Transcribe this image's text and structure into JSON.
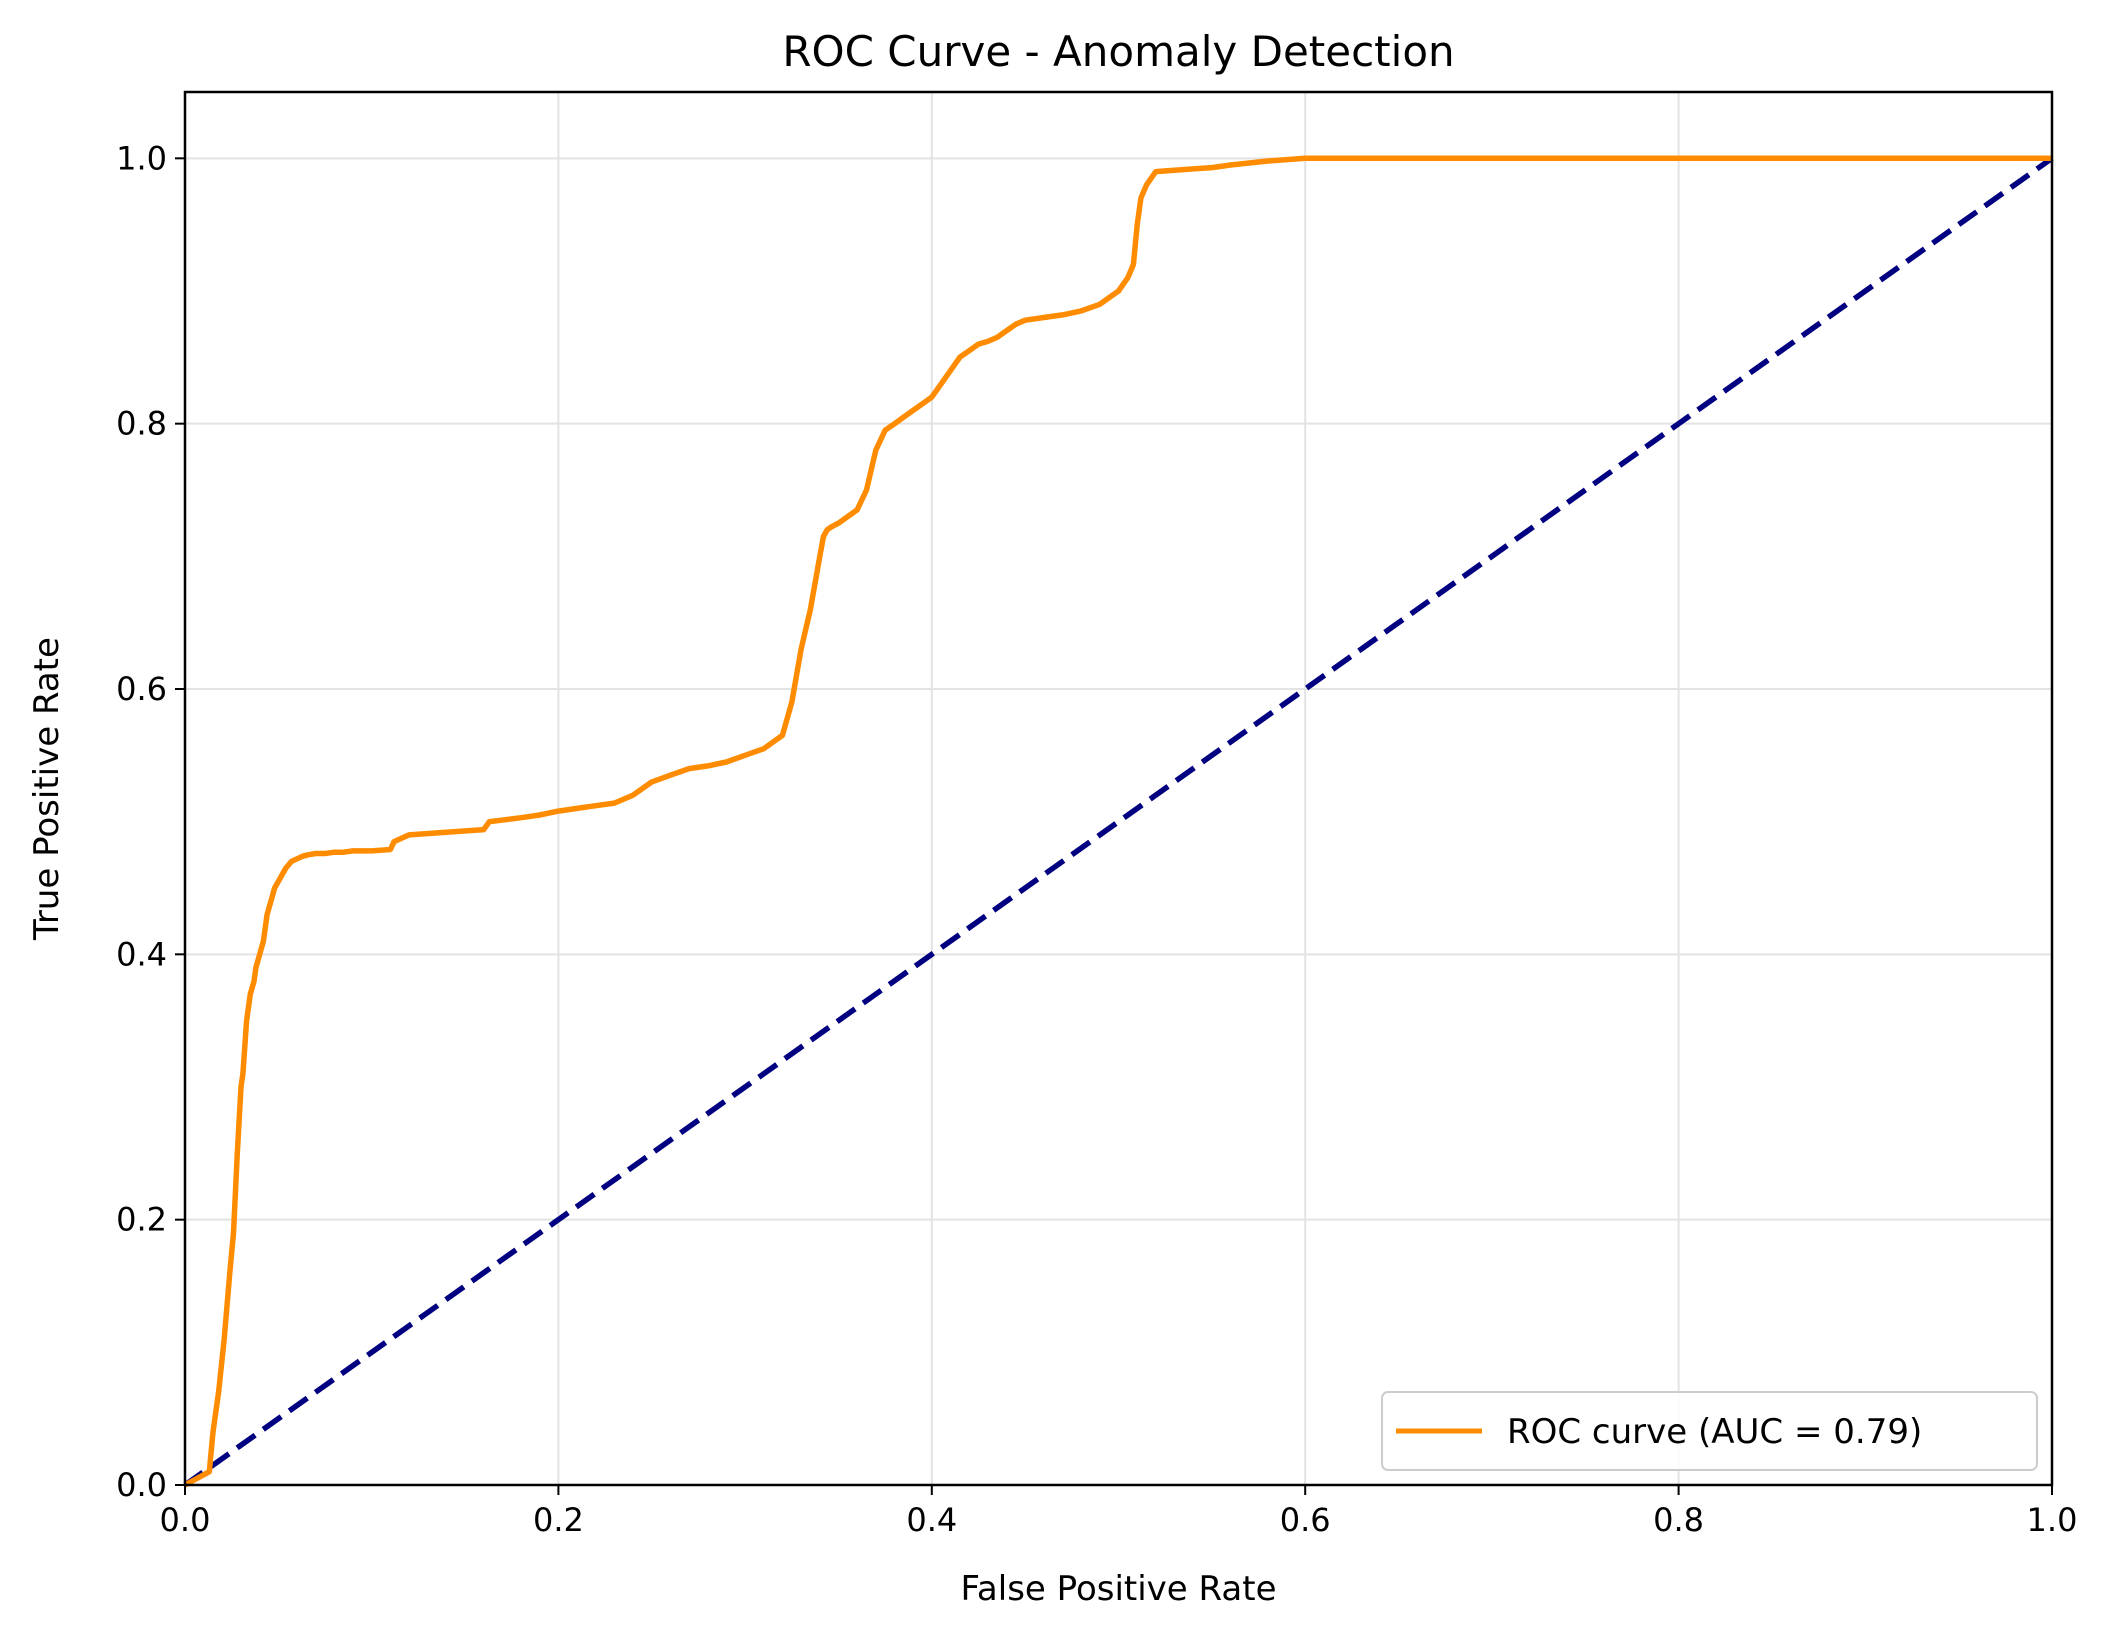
{
  "chart_data": {
    "type": "line",
    "title": "ROC Curve - Anomaly Detection",
    "xlabel": "False Positive Rate",
    "ylabel": "True Positive Rate",
    "xlim": [
      0.0,
      1.0
    ],
    "ylim": [
      0.0,
      1.05
    ],
    "x_ticks": [
      "0.0",
      "0.2",
      "0.4",
      "0.6",
      "0.8",
      "1.0"
    ],
    "y_ticks": [
      "0.0",
      "0.2",
      "0.4",
      "0.6",
      "0.8",
      "1.0"
    ],
    "grid": true,
    "legend_position": "lower-right",
    "series": [
      {
        "name": "ROC curve (AUC = 0.79)",
        "color": "#ff8c00",
        "style": "solid",
        "x": [
          0.0,
          0.013,
          0.015,
          0.018,
          0.021,
          0.024,
          0.026,
          0.028,
          0.03,
          0.031,
          0.033,
          0.035,
          0.037,
          0.038,
          0.04,
          0.042,
          0.044,
          0.046,
          0.048,
          0.05,
          0.052,
          0.054,
          0.057,
          0.06,
          0.063,
          0.066,
          0.07,
          0.075,
          0.08,
          0.085,
          0.09,
          0.1,
          0.11,
          0.112,
          0.12,
          0.14,
          0.16,
          0.163,
          0.18,
          0.19,
          0.2,
          0.21,
          0.22,
          0.23,
          0.24,
          0.25,
          0.26,
          0.27,
          0.28,
          0.29,
          0.3,
          0.31,
          0.32,
          0.325,
          0.33,
          0.335,
          0.34,
          0.342,
          0.344,
          0.346,
          0.35,
          0.355,
          0.36,
          0.365,
          0.37,
          0.375,
          0.38,
          0.385,
          0.39,
          0.395,
          0.4,
          0.405,
          0.41,
          0.415,
          0.42,
          0.425,
          0.43,
          0.435,
          0.44,
          0.445,
          0.45,
          0.46,
          0.47,
          0.48,
          0.49,
          0.5,
          0.505,
          0.508,
          0.51,
          0.512,
          0.515,
          0.52,
          0.53,
          0.54,
          0.55,
          0.56,
          0.58,
          0.6,
          0.7,
          0.8,
          0.9,
          1.0
        ],
        "y": [
          0.0,
          0.01,
          0.04,
          0.07,
          0.11,
          0.16,
          0.19,
          0.25,
          0.3,
          0.31,
          0.35,
          0.37,
          0.38,
          0.39,
          0.4,
          0.41,
          0.43,
          0.44,
          0.45,
          0.455,
          0.46,
          0.465,
          0.47,
          0.472,
          0.474,
          0.475,
          0.476,
          0.476,
          0.477,
          0.477,
          0.478,
          0.478,
          0.479,
          0.485,
          0.49,
          0.492,
          0.494,
          0.5,
          0.503,
          0.505,
          0.508,
          0.51,
          0.512,
          0.514,
          0.52,
          0.53,
          0.535,
          0.54,
          0.542,
          0.545,
          0.55,
          0.555,
          0.565,
          0.59,
          0.63,
          0.66,
          0.7,
          0.715,
          0.72,
          0.722,
          0.725,
          0.73,
          0.735,
          0.75,
          0.78,
          0.795,
          0.8,
          0.805,
          0.81,
          0.815,
          0.82,
          0.83,
          0.84,
          0.85,
          0.855,
          0.86,
          0.862,
          0.865,
          0.87,
          0.875,
          0.878,
          0.88,
          0.882,
          0.885,
          0.89,
          0.9,
          0.91,
          0.92,
          0.95,
          0.97,
          0.98,
          0.99,
          0.991,
          0.992,
          0.993,
          0.995,
          0.998,
          1.0,
          1.0,
          1.0,
          1.0,
          1.0
        ]
      },
      {
        "name": "",
        "color": "#000080",
        "style": "dashed",
        "x": [
          0.0,
          1.0
        ],
        "y": [
          0.0,
          1.0
        ]
      }
    ]
  }
}
